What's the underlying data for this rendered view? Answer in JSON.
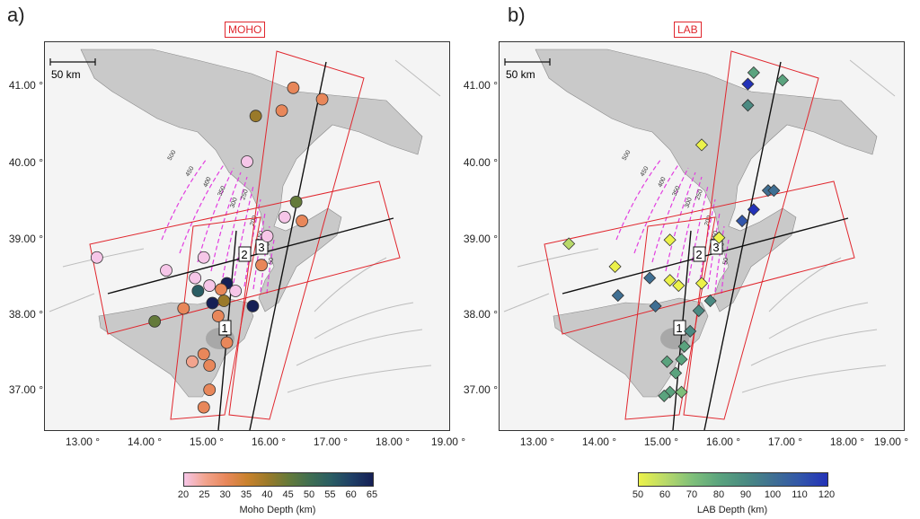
{
  "panel_a": {
    "letter": "a)",
    "title": "MOHO",
    "scale_label": "50 km",
    "lat_ticks": [
      "41.00 °",
      "40.00 °",
      "39.00 °",
      "38.00 °",
      "37.00 °"
    ],
    "lon_ticks": [
      "13.00 °",
      "14.00 °",
      "15.00 °",
      "16.00 °",
      "17.00 °",
      "18.00 °",
      "19.00 °"
    ],
    "profile_labels": [
      "1",
      "2",
      "3"
    ],
    "contour_labels": [
      "500",
      "450",
      "400",
      "350",
      "300",
      "250",
      "200",
      "150",
      "100",
      "50"
    ],
    "colorbar": {
      "ticks": [
        "20",
        "25",
        "30",
        "35",
        "40",
        "45",
        "50",
        "55",
        "60",
        "65"
      ],
      "label": "Moho Depth (km)",
      "colors": [
        "#f6c6e8",
        "#f2a48e",
        "#e8875a",
        "#c9822d",
        "#9a7a2a",
        "#647a3a",
        "#3f6e52",
        "#2a5d63",
        "#1f3f66",
        "#151f55"
      ]
    },
    "stations": [
      {
        "lon": 16.6,
        "lat": 40.95,
        "depth": 32
      },
      {
        "lon": 17.1,
        "lat": 40.8,
        "depth": 31
      },
      {
        "lon": 16.4,
        "lat": 40.65,
        "depth": 33
      },
      {
        "lon": 15.95,
        "lat": 40.58,
        "depth": 42
      },
      {
        "lon": 15.8,
        "lat": 39.98,
        "depth": 21
      },
      {
        "lon": 16.65,
        "lat": 39.45,
        "depth": 44
      },
      {
        "lon": 16.45,
        "lat": 39.25,
        "depth": 22
      },
      {
        "lon": 16.75,
        "lat": 39.2,
        "depth": 32
      },
      {
        "lon": 16.15,
        "lat": 39.0,
        "depth": 22
      },
      {
        "lon": 13.2,
        "lat": 38.72,
        "depth": 21
      },
      {
        "lon": 15.05,
        "lat": 38.72,
        "depth": 21
      },
      {
        "lon": 14.4,
        "lat": 38.55,
        "depth": 21
      },
      {
        "lon": 16.05,
        "lat": 38.62,
        "depth": 31
      },
      {
        "lon": 14.9,
        "lat": 38.45,
        "depth": 21
      },
      {
        "lon": 15.15,
        "lat": 38.35,
        "depth": 21
      },
      {
        "lon": 15.45,
        "lat": 38.38,
        "depth": 65
      },
      {
        "lon": 15.35,
        "lat": 38.3,
        "depth": 32
      },
      {
        "lon": 15.6,
        "lat": 38.28,
        "depth": 22
      },
      {
        "lon": 14.95,
        "lat": 38.28,
        "depth": 58
      },
      {
        "lon": 15.2,
        "lat": 38.12,
        "depth": 65
      },
      {
        "lon": 15.4,
        "lat": 38.15,
        "depth": 40
      },
      {
        "lon": 15.9,
        "lat": 38.08,
        "depth": 66
      },
      {
        "lon": 14.7,
        "lat": 38.05,
        "depth": 30
      },
      {
        "lon": 15.3,
        "lat": 37.95,
        "depth": 30
      },
      {
        "lon": 14.2,
        "lat": 37.88,
        "depth": 48
      },
      {
        "lon": 15.45,
        "lat": 37.6,
        "depth": 31
      },
      {
        "lon": 15.05,
        "lat": 37.45,
        "depth": 29
      },
      {
        "lon": 15.15,
        "lat": 37.3,
        "depth": 31
      },
      {
        "lon": 14.85,
        "lat": 37.35,
        "depth": 27
      },
      {
        "lon": 15.15,
        "lat": 36.98,
        "depth": 33
      },
      {
        "lon": 15.05,
        "lat": 36.75,
        "depth": 31
      }
    ]
  },
  "panel_b": {
    "letter": "b)",
    "title": "LAB",
    "scale_label": "50 km",
    "lat_ticks": [
      "41.00 °",
      "40.00 °",
      "39.00 °",
      "38.00 °",
      "37.00 °"
    ],
    "lon_ticks": [
      "13.00 °",
      "14.00 °",
      "15.00 °",
      "16.00 °",
      "17.00 °",
      "18.00 °",
      "19.00 °"
    ],
    "profile_labels": [
      "1",
      "2",
      "3"
    ],
    "contour_labels": [
      "500",
      "450",
      "400",
      "350",
      "300",
      "250",
      "200",
      "150",
      "100",
      "50"
    ],
    "colorbar": {
      "ticks": [
        "50",
        "60",
        "70",
        "80",
        "90",
        "100",
        "110",
        "120"
      ],
      "label": "LAB Depth (km)",
      "colors": [
        "#ecf24a",
        "#b8d96a",
        "#7ebf7a",
        "#5aa37e",
        "#4a8a82",
        "#3f6f93",
        "#3256aa",
        "#2332b8"
      ]
    },
    "stations": [
      {
        "lon": 16.7,
        "lat": 41.15,
        "depth": 85
      },
      {
        "lon": 17.2,
        "lat": 41.05,
        "depth": 80
      },
      {
        "lon": 16.6,
        "lat": 41.0,
        "depth": 120
      },
      {
        "lon": 16.6,
        "lat": 40.72,
        "depth": 92
      },
      {
        "lon": 15.8,
        "lat": 40.2,
        "depth": 52
      },
      {
        "lon": 16.95,
        "lat": 39.6,
        "depth": 98
      },
      {
        "lon": 17.05,
        "lat": 39.6,
        "depth": 105
      },
      {
        "lon": 16.7,
        "lat": 39.35,
        "depth": 122
      },
      {
        "lon": 16.5,
        "lat": 39.2,
        "depth": 110
      },
      {
        "lon": 16.1,
        "lat": 38.98,
        "depth": 55
      },
      {
        "lon": 13.5,
        "lat": 38.9,
        "depth": 65
      },
      {
        "lon": 15.25,
        "lat": 38.95,
        "depth": 52
      },
      {
        "lon": 14.3,
        "lat": 38.6,
        "depth": 52
      },
      {
        "lon": 14.9,
        "lat": 38.45,
        "depth": 105
      },
      {
        "lon": 15.25,
        "lat": 38.42,
        "depth": 52
      },
      {
        "lon": 15.4,
        "lat": 38.35,
        "depth": 52
      },
      {
        "lon": 15.8,
        "lat": 38.38,
        "depth": 52
      },
      {
        "lon": 14.35,
        "lat": 38.22,
        "depth": 105
      },
      {
        "lon": 15.95,
        "lat": 38.15,
        "depth": 95
      },
      {
        "lon": 15.75,
        "lat": 38.02,
        "depth": 95
      },
      {
        "lon": 15.0,
        "lat": 38.08,
        "depth": 105
      },
      {
        "lon": 15.6,
        "lat": 37.75,
        "depth": 95
      },
      {
        "lon": 15.5,
        "lat": 37.55,
        "depth": 82
      },
      {
        "lon": 15.45,
        "lat": 37.38,
        "depth": 80
      },
      {
        "lon": 15.2,
        "lat": 37.35,
        "depth": 85
      },
      {
        "lon": 15.35,
        "lat": 37.2,
        "depth": 82
      },
      {
        "lon": 15.25,
        "lat": 36.95,
        "depth": 80
      },
      {
        "lon": 15.45,
        "lat": 36.95,
        "depth": 70
      },
      {
        "lon": 15.15,
        "lat": 36.9,
        "depth": 82
      }
    ]
  }
}
